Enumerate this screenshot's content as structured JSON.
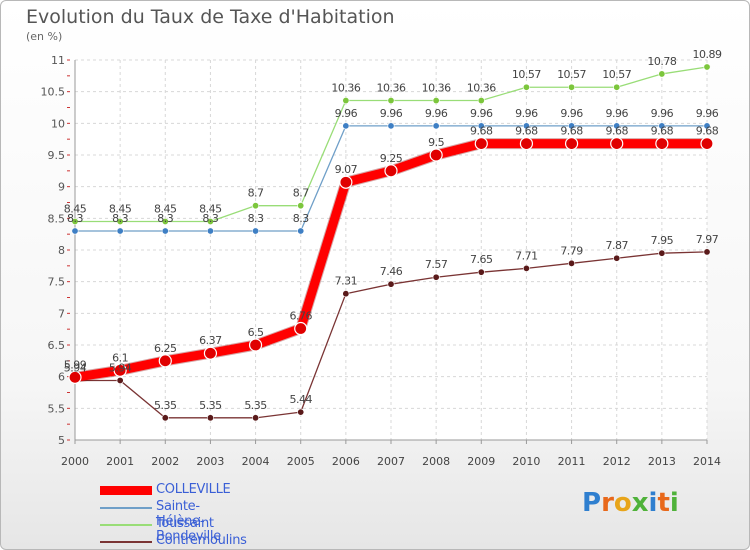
{
  "header": {
    "title": "Evolution du Taux de Taxe d'Habitation",
    "unit": "(en %)"
  },
  "logo": {
    "letters": [
      "P",
      "r",
      "o",
      "x",
      "i",
      "t",
      "i"
    ],
    "colors": [
      "#2f7fcf",
      "#e8681a",
      "#e8a51a",
      "#4fb23a",
      "#2f7fcf",
      "#e8681a",
      "#4fb23a"
    ]
  },
  "chart_data": {
    "type": "line",
    "x": [
      2000,
      2001,
      2002,
      2003,
      2004,
      2005,
      2006,
      2007,
      2008,
      2009,
      2010,
      2011,
      2012,
      2013,
      2014
    ],
    "ylim": [
      5,
      11
    ],
    "yticks": [
      5,
      5.5,
      6,
      6.5,
      7,
      7.5,
      8,
      8.5,
      9,
      9.5,
      10,
      10.5,
      11
    ],
    "ytick_labels": [
      "5",
      "5.5",
      "6",
      "6.5",
      "7",
      "7.5",
      "8",
      "8.5",
      "9",
      "9.5",
      "10",
      "10.5",
      "11"
    ],
    "grid": true,
    "legend_position": "bottom-left",
    "series": [
      {
        "name": "COLLEVILLE",
        "color": "#ff0000",
        "marker": "#e00000",
        "width": 9,
        "values": [
          5.99,
          6.1,
          6.25,
          6.37,
          6.5,
          6.76,
          9.07,
          9.25,
          9.5,
          9.68,
          9.68,
          9.68,
          9.68,
          9.68,
          9.68
        ],
        "labels": [
          "5.99",
          "6.1",
          "6.25",
          "6.37",
          "6.5",
          "6.76",
          "9.07",
          "9.25",
          "9.5",
          "9.68",
          "9.68",
          "9.68",
          "9.68",
          "9.68",
          "9.68"
        ]
      },
      {
        "name": "Sainte-Hélène-Bondeville",
        "color": "#6f9fc8",
        "marker": "#3e7fc4",
        "width": 1.3,
        "values": [
          8.3,
          8.3,
          8.3,
          8.3,
          8.3,
          8.3,
          9.96,
          9.96,
          9.96,
          9.96,
          9.96,
          9.96,
          9.96,
          9.96,
          9.96
        ],
        "labels": [
          "8.3",
          "8.3",
          "8.3",
          "8.3",
          "8.3",
          "8.3",
          "9.96",
          "9.96",
          "9.96",
          "9.96",
          "9.96",
          "9.96",
          "9.96",
          "9.96",
          "9.96"
        ]
      },
      {
        "name": "Toussaint",
        "color": "#99dd77",
        "marker": "#7cc63c",
        "width": 1.3,
        "values": [
          8.45,
          8.45,
          8.45,
          8.45,
          8.7,
          8.7,
          10.36,
          10.36,
          10.36,
          10.36,
          10.57,
          10.57,
          10.57,
          10.78,
          10.89
        ],
        "labels": [
          "8.45",
          "8.45",
          "8.45",
          "8.45",
          "8.7",
          "8.7",
          "10.36",
          "10.36",
          "10.36",
          "10.36",
          "10.57",
          "10.57",
          "10.57",
          "10.78",
          "10.89"
        ]
      },
      {
        "name": "Contremoulins",
        "color": "#7a3434",
        "marker": "#5a1a1a",
        "width": 1.3,
        "values": [
          5.94,
          5.94,
          5.35,
          5.35,
          5.35,
          5.44,
          7.31,
          7.46,
          7.57,
          7.65,
          7.71,
          7.79,
          7.87,
          7.95,
          7.97
        ],
        "labels": [
          "5.94",
          "5.94",
          "5.35",
          "5.35",
          "5.35",
          "5.44",
          "7.31",
          "7.46",
          "7.57",
          "7.65",
          "7.71",
          "7.79",
          "7.87",
          "7.95",
          "7.97"
        ]
      }
    ]
  }
}
